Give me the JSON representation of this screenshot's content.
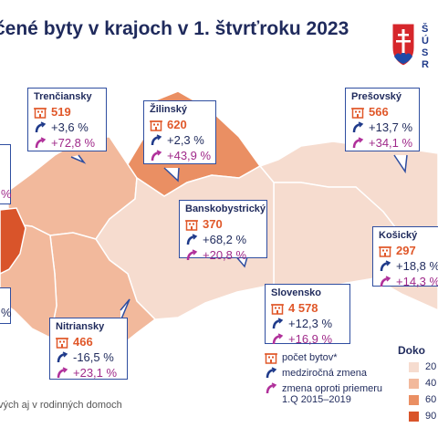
{
  "title": "čené byty v krajoch v 1. štvrťroku 2023",
  "emblem_text": [
    "Š",
    "Ú",
    "S",
    "R"
  ],
  "colors": {
    "c1": "#f6dccf",
    "c2": "#f2b99c",
    "c3": "#ea8f63",
    "c4": "#d9542a",
    "border": "#ffffff",
    "box": "#2f4ea0"
  },
  "regions": [
    {
      "name": "Trenčiansky",
      "count": "519",
      "yoy": "+3,6 %",
      "avg": "+72,8 %"
    },
    {
      "name": "Žilinský",
      "count": "620",
      "yoy": "+2,3 %",
      "avg": "+43,9 %"
    },
    {
      "name": "Prešovský",
      "count": "566",
      "yoy": "+13,7 %",
      "avg": "+34,1 %"
    },
    {
      "name": "Banskobystrický",
      "count": "370",
      "yoy": "+68,2 %",
      "avg": "+20,8 %"
    },
    {
      "name": "Košický",
      "count": "297",
      "yoy": "+18,8 %",
      "avg": "+14,3 %"
    },
    {
      "name": "Slovensko",
      "count": "4 578",
      "yoy": "+12,3 %",
      "avg": "+16,9 %"
    },
    {
      "name": "Nitriansky",
      "count": "466",
      "yoy": "-16,5 %",
      "avg": "+23,1 %"
    }
  ],
  "partial": {
    "top_pct": "%",
    "bottom_pct": "%"
  },
  "legend": {
    "count": "počet bytov*",
    "yoy": "medziročná zmena",
    "avg": "zmena oproti priemeru",
    "avg_note": "1.Q 2015–2019"
  },
  "color_legend": {
    "title": "Doko",
    "items": [
      "20",
      "40",
      "60",
      "90"
    ]
  },
  "footnote": "vých aj v rodinných domoch"
}
